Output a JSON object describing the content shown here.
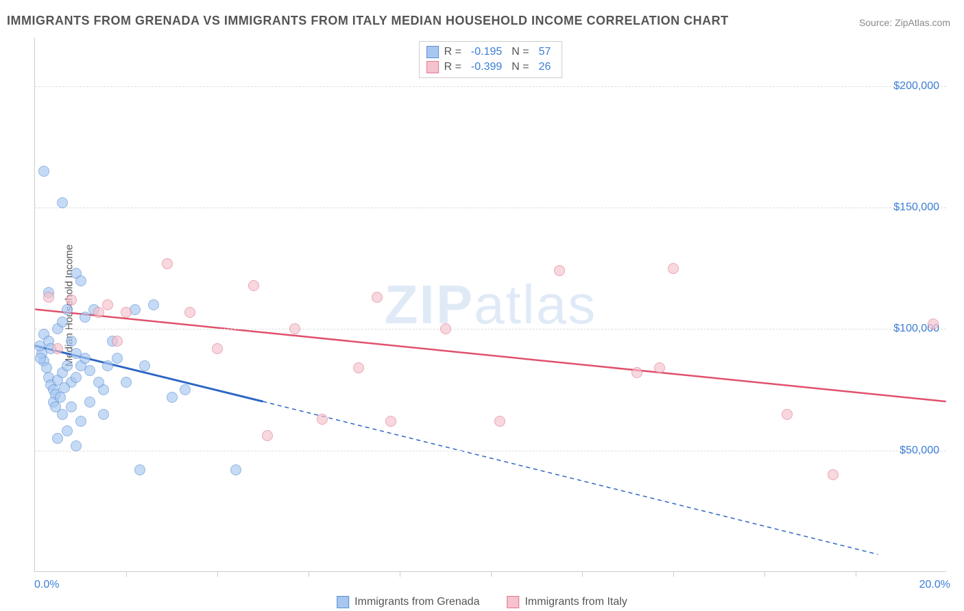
{
  "title": "IMMIGRANTS FROM GRENADA VS IMMIGRANTS FROM ITALY MEDIAN HOUSEHOLD INCOME CORRELATION CHART",
  "source": "Source: ZipAtlas.com",
  "watermark": "ZIPatlas",
  "ylabel": "Median Household Income",
  "chart": {
    "type": "scatter",
    "xlim": [
      0,
      20
    ],
    "ylim": [
      0,
      220000
    ],
    "x_axis_min_label": "0.0%",
    "x_axis_max_label": "20.0%",
    "x_tick_positions": [
      2,
      4,
      6,
      8,
      10,
      12,
      14,
      16,
      18
    ],
    "y_gridlines": [
      50000,
      100000,
      150000,
      200000
    ],
    "y_tick_labels": [
      "$50,000",
      "$100,000",
      "$150,000",
      "$200,000"
    ],
    "grid_color": "#dddddd",
    "axis_color": "#cccccc",
    "background_color": "#ffffff",
    "label_color": "#3b7dd8",
    "title_color": "#555555",
    "title_fontsize": 18,
    "label_fontsize": 16,
    "point_radius": 8,
    "point_opacity": 0.65
  },
  "series": [
    {
      "name": "Immigrants from Grenada",
      "marker_fill": "#a7c7f0",
      "marker_stroke": "#5b8fd6",
      "trend_color": "#2d66c4",
      "trend_width": 3,
      "R": "-0.195",
      "N": "57",
      "trend_solid": {
        "x1": 0,
        "y1": 93000,
        "x2": 5,
        "y2": 70000
      },
      "trend_dashed": {
        "x1": 5,
        "y1": 70000,
        "x2": 18.5,
        "y2": 7000
      },
      "points": [
        {
          "x": 0.2,
          "y": 165000
        },
        {
          "x": 0.6,
          "y": 152000
        },
        {
          "x": 0.9,
          "y": 123000
        },
        {
          "x": 1.0,
          "y": 120000
        },
        {
          "x": 0.3,
          "y": 115000
        },
        {
          "x": 0.2,
          "y": 98000
        },
        {
          "x": 0.3,
          "y": 95000
        },
        {
          "x": 0.35,
          "y": 92000
        },
        {
          "x": 0.5,
          "y": 100000
        },
        {
          "x": 0.6,
          "y": 103000
        },
        {
          "x": 0.7,
          "y": 108000
        },
        {
          "x": 0.8,
          "y": 95000
        },
        {
          "x": 0.9,
          "y": 90000
        },
        {
          "x": 1.1,
          "y": 105000
        },
        {
          "x": 0.2,
          "y": 87000
        },
        {
          "x": 0.25,
          "y": 84000
        },
        {
          "x": 0.3,
          "y": 80000
        },
        {
          "x": 0.35,
          "y": 77000
        },
        {
          "x": 0.4,
          "y": 75000
        },
        {
          "x": 0.45,
          "y": 73000
        },
        {
          "x": 0.5,
          "y": 79000
        },
        {
          "x": 0.6,
          "y": 82000
        },
        {
          "x": 0.7,
          "y": 85000
        },
        {
          "x": 0.8,
          "y": 78000
        },
        {
          "x": 0.9,
          "y": 80000
        },
        {
          "x": 1.0,
          "y": 85000
        },
        {
          "x": 1.1,
          "y": 88000
        },
        {
          "x": 1.2,
          "y": 83000
        },
        {
          "x": 1.3,
          "y": 108000
        },
        {
          "x": 1.5,
          "y": 75000
        },
        {
          "x": 1.6,
          "y": 85000
        },
        {
          "x": 1.7,
          "y": 95000
        },
        {
          "x": 1.8,
          "y": 88000
        },
        {
          "x": 2.0,
          "y": 78000
        },
        {
          "x": 2.2,
          "y": 108000
        },
        {
          "x": 2.4,
          "y": 85000
        },
        {
          "x": 2.6,
          "y": 110000
        },
        {
          "x": 3.0,
          "y": 72000
        },
        {
          "x": 1.4,
          "y": 78000
        },
        {
          "x": 0.15,
          "y": 90000
        },
        {
          "x": 0.5,
          "y": 55000
        },
        {
          "x": 0.7,
          "y": 58000
        },
        {
          "x": 0.9,
          "y": 52000
        },
        {
          "x": 0.6,
          "y": 65000
        },
        {
          "x": 0.8,
          "y": 68000
        },
        {
          "x": 1.0,
          "y": 62000
        },
        {
          "x": 1.2,
          "y": 70000
        },
        {
          "x": 1.5,
          "y": 65000
        },
        {
          "x": 2.3,
          "y": 42000
        },
        {
          "x": 4.4,
          "y": 42000
        },
        {
          "x": 0.4,
          "y": 70000
        },
        {
          "x": 0.45,
          "y": 68000
        },
        {
          "x": 0.55,
          "y": 72000
        },
        {
          "x": 0.65,
          "y": 76000
        },
        {
          "x": 0.1,
          "y": 93000
        },
        {
          "x": 0.12,
          "y": 88000
        },
        {
          "x": 3.3,
          "y": 75000
        }
      ]
    },
    {
      "name": "Immigrants from Italy",
      "marker_fill": "#f5c2cd",
      "marker_stroke": "#e07a8f",
      "trend_color": "#e0506c",
      "trend_width": 2.5,
      "R": "-0.399",
      "N": "26",
      "trend_solid": {
        "x1": 0,
        "y1": 108000,
        "x2": 20,
        "y2": 70000
      },
      "points": [
        {
          "x": 0.3,
          "y": 113000
        },
        {
          "x": 0.8,
          "y": 112000
        },
        {
          "x": 1.4,
          "y": 107000
        },
        {
          "x": 1.6,
          "y": 110000
        },
        {
          "x": 1.8,
          "y": 95000
        },
        {
          "x": 2.0,
          "y": 107000
        },
        {
          "x": 2.9,
          "y": 127000
        },
        {
          "x": 3.4,
          "y": 107000
        },
        {
          "x": 4.0,
          "y": 92000
        },
        {
          "x": 4.8,
          "y": 118000
        },
        {
          "x": 5.1,
          "y": 56000
        },
        {
          "x": 5.7,
          "y": 100000
        },
        {
          "x": 6.3,
          "y": 63000
        },
        {
          "x": 7.1,
          "y": 84000
        },
        {
          "x": 7.5,
          "y": 113000
        },
        {
          "x": 7.8,
          "y": 62000
        },
        {
          "x": 9.0,
          "y": 100000
        },
        {
          "x": 10.2,
          "y": 62000
        },
        {
          "x": 11.5,
          "y": 124000
        },
        {
          "x": 13.2,
          "y": 82000
        },
        {
          "x": 13.7,
          "y": 84000
        },
        {
          "x": 14.0,
          "y": 125000
        },
        {
          "x": 16.5,
          "y": 65000
        },
        {
          "x": 17.5,
          "y": 40000
        },
        {
          "x": 19.7,
          "y": 102000
        },
        {
          "x": 0.5,
          "y": 92000
        }
      ]
    }
  ],
  "legend_top": [
    {
      "r_label": "R =",
      "n_label": "N ="
    }
  ],
  "legend_bottom": [
    "Immigrants from Grenada",
    "Immigrants from Italy"
  ]
}
